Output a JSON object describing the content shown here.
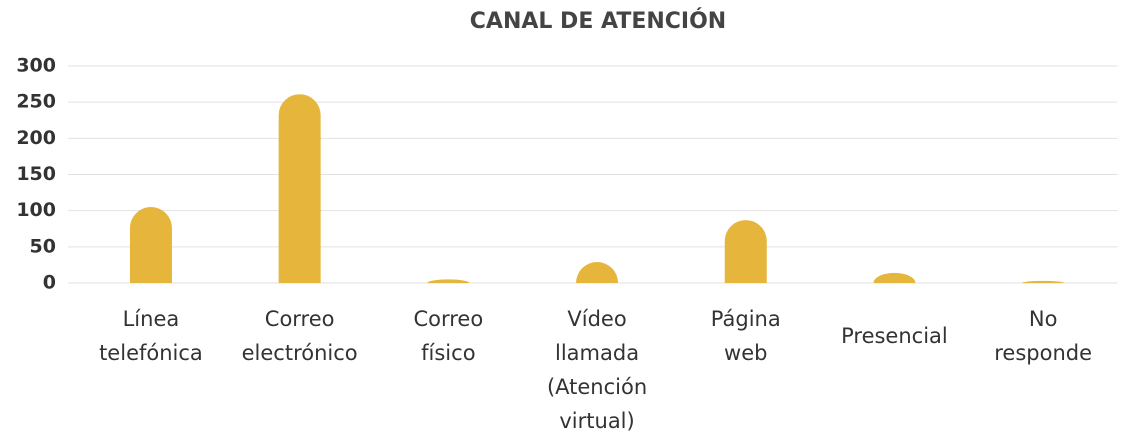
{
  "chart_data": {
    "type": "bar",
    "title": "CANAL DE ATENCIÓN",
    "categories": [
      "Línea telefónica",
      "Correo electrónico",
      "Correo físico",
      "Vídeo llamada (Atención virtual)",
      "Página web",
      "Presencial",
      "No responde"
    ],
    "values": [
      105,
      261,
      5,
      29,
      87,
      14,
      3
    ],
    "color": "#e6b53b",
    "ylim": [
      0,
      300
    ],
    "yticks": [
      0,
      50,
      100,
      150,
      200,
      250,
      300
    ],
    "grid": true
  }
}
